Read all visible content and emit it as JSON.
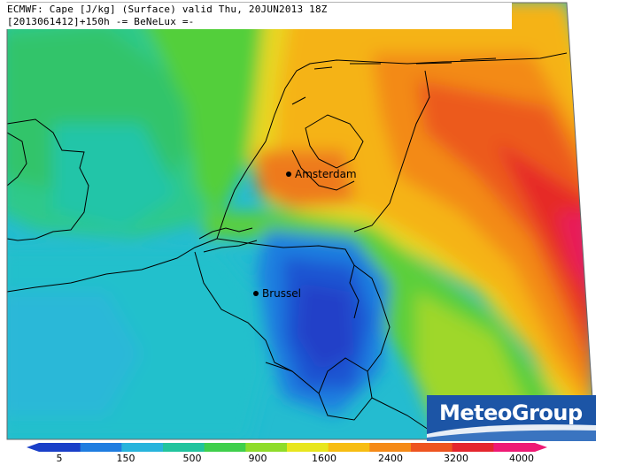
{
  "header": {
    "line1": "ECMWF: Cape [J/kg] (Surface) valid Thu, 20JUN2013 18Z",
    "line2": "[2013061412]+150h -= BeNeLux =-"
  },
  "cities": [
    {
      "name": "Amsterdam"
    },
    {
      "name": "Brussel"
    }
  ],
  "logo": {
    "text": "MeteoGroup",
    "color": "#1c55a6"
  },
  "legend": {
    "labels": [
      "5",
      "150",
      "500",
      "900",
      "1600",
      "2400",
      "3200",
      "4000"
    ],
    "colors": [
      "#1a3fc8",
      "#1f7de0",
      "#27b4dc",
      "#21c49e",
      "#3fcf4c",
      "#8fdc2a",
      "#e8e61e",
      "#f7bd12",
      "#f58a17",
      "#ee5420",
      "#e4262e",
      "#ee1a74"
    ]
  },
  "colors": {
    "sea": "#23b8d5",
    "border": "#000000"
  }
}
